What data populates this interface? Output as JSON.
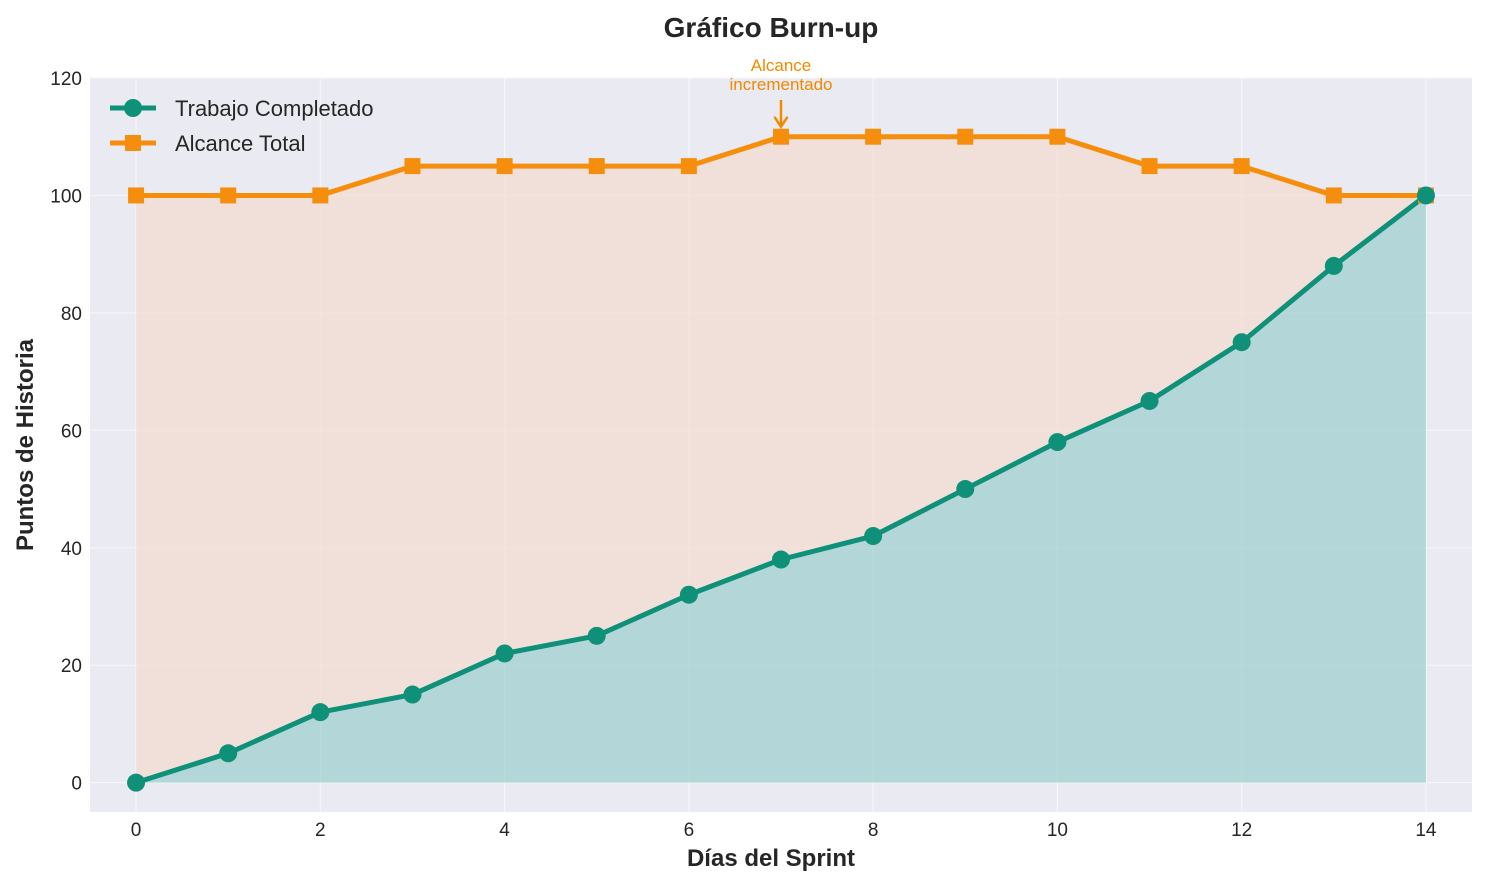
{
  "chart_data": {
    "type": "line",
    "title": "Gráfico Burn-up",
    "xlabel": "Días del Sprint",
    "ylabel": "Puntos de Historia",
    "x": [
      0,
      1,
      2,
      3,
      4,
      5,
      6,
      7,
      8,
      9,
      10,
      11,
      12,
      13,
      14
    ],
    "xlim": [
      -0.5,
      14.5
    ],
    "ylim": [
      -5,
      120
    ],
    "xticks": [
      0,
      2,
      4,
      6,
      8,
      10,
      12,
      14
    ],
    "yticks": [
      0,
      20,
      40,
      60,
      80,
      100,
      120
    ],
    "grid": true,
    "legend_position": "top-left",
    "series": [
      {
        "name": "Trabajo Completado",
        "values": [
          0,
          5,
          12,
          15,
          22,
          25,
          32,
          38,
          42,
          50,
          58,
          65,
          75,
          88,
          100
        ],
        "color": "#0e9079",
        "marker": "circle",
        "fill_color": "#8ec9c7"
      },
      {
        "name": "Alcance Total",
        "values": [
          100,
          100,
          100,
          105,
          105,
          105,
          105,
          110,
          110,
          110,
          110,
          105,
          105,
          100,
          100
        ],
        "color": "#f68e0d",
        "marker": "square",
        "fill_color": "#f3dcd2"
      }
    ],
    "annotations": [
      {
        "text_lines": [
          "Alcance",
          "incrementado"
        ],
        "x": 7,
        "y": 110,
        "color": "#f08a00"
      }
    ],
    "colors": {
      "plot_background": "#eaeaf2",
      "grid": "#f6f6f9",
      "text": "#262626"
    }
  }
}
